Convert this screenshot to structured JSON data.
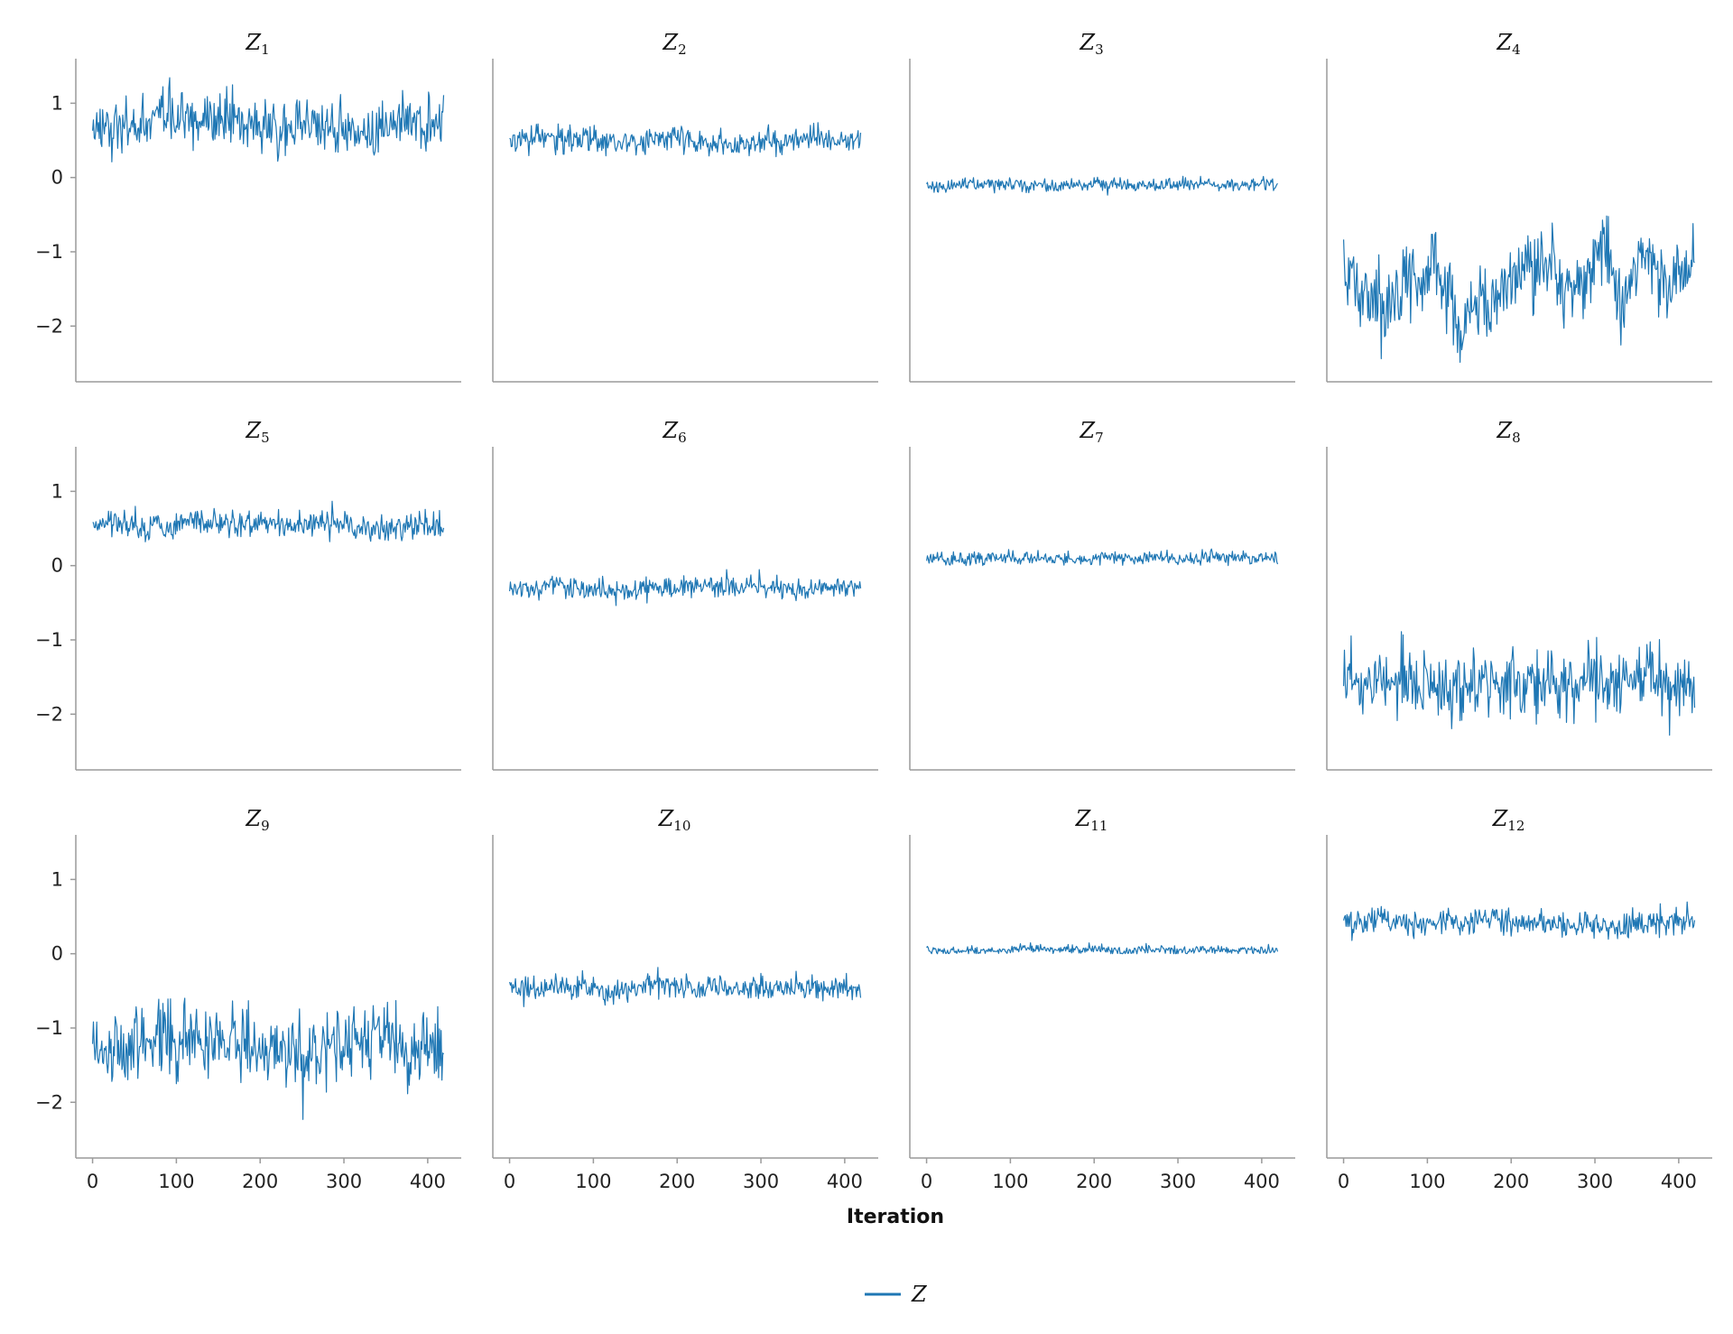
{
  "chart_data": {
    "type": "line",
    "xlabel": "Iteration",
    "legend": {
      "label": "Z",
      "placement": "bottom-center"
    },
    "series_color": "#1f77b4",
    "layout": {
      "rows": 3,
      "cols": 4
    },
    "xlim": [
      -20,
      440
    ],
    "ylim": [
      -2.75,
      1.6
    ],
    "x_ticks": [
      0,
      100,
      200,
      300,
      400
    ],
    "y_ticks": [
      1,
      0,
      -1,
      -2
    ],
    "y_tick_labels": [
      "1",
      "0",
      "−1",
      "−2"
    ],
    "n_iterations": 420,
    "panels": [
      {
        "title": "Z",
        "subscript": "1",
        "center": 0.7,
        "spread": 0.18,
        "min": 0.15,
        "max": 1.4,
        "drift": 0.05
      },
      {
        "title": "Z",
        "subscript": "2",
        "center": 0.5,
        "spread": 0.09,
        "min": 0.18,
        "max": 0.75,
        "drift": 0.02
      },
      {
        "title": "Z",
        "subscript": "3",
        "center": -0.1,
        "spread": 0.045,
        "min": -0.3,
        "max": 0.02,
        "drift": 0.01
      },
      {
        "title": "Z",
        "subscript": "4",
        "center": -1.3,
        "spread": 0.26,
        "min": -2.5,
        "max": -0.4,
        "drift": 0.25
      },
      {
        "title": "Z",
        "subscript": "5",
        "center": 0.55,
        "spread": 0.09,
        "min": 0.25,
        "max": 0.95,
        "drift": 0.03
      },
      {
        "title": "Z",
        "subscript": "6",
        "center": -0.3,
        "spread": 0.07,
        "min": -0.55,
        "max": -0.05,
        "drift": 0.02
      },
      {
        "title": "Z",
        "subscript": "7",
        "center": 0.1,
        "spread": 0.045,
        "min": 0.0,
        "max": 0.38,
        "drift": 0.01
      },
      {
        "title": "Z",
        "subscript": "8",
        "center": -1.6,
        "spread": 0.22,
        "min": -2.3,
        "max": -0.85,
        "drift": 0.05
      },
      {
        "title": "Z",
        "subscript": "9",
        "center": -1.2,
        "spread": 0.26,
        "min": -2.25,
        "max": -0.45,
        "drift": 0.1
      },
      {
        "title": "Z",
        "subscript": "10",
        "center": -0.45,
        "spread": 0.08,
        "min": -0.75,
        "max": -0.18,
        "drift": 0.03
      },
      {
        "title": "Z",
        "subscript": "11",
        "center": 0.05,
        "spread": 0.03,
        "min": 0.0,
        "max": 0.22,
        "drift": 0.01
      },
      {
        "title": "Z",
        "subscript": "12",
        "center": 0.4,
        "spread": 0.09,
        "min": 0.1,
        "max": 0.7,
        "drift": 0.03
      }
    ]
  }
}
